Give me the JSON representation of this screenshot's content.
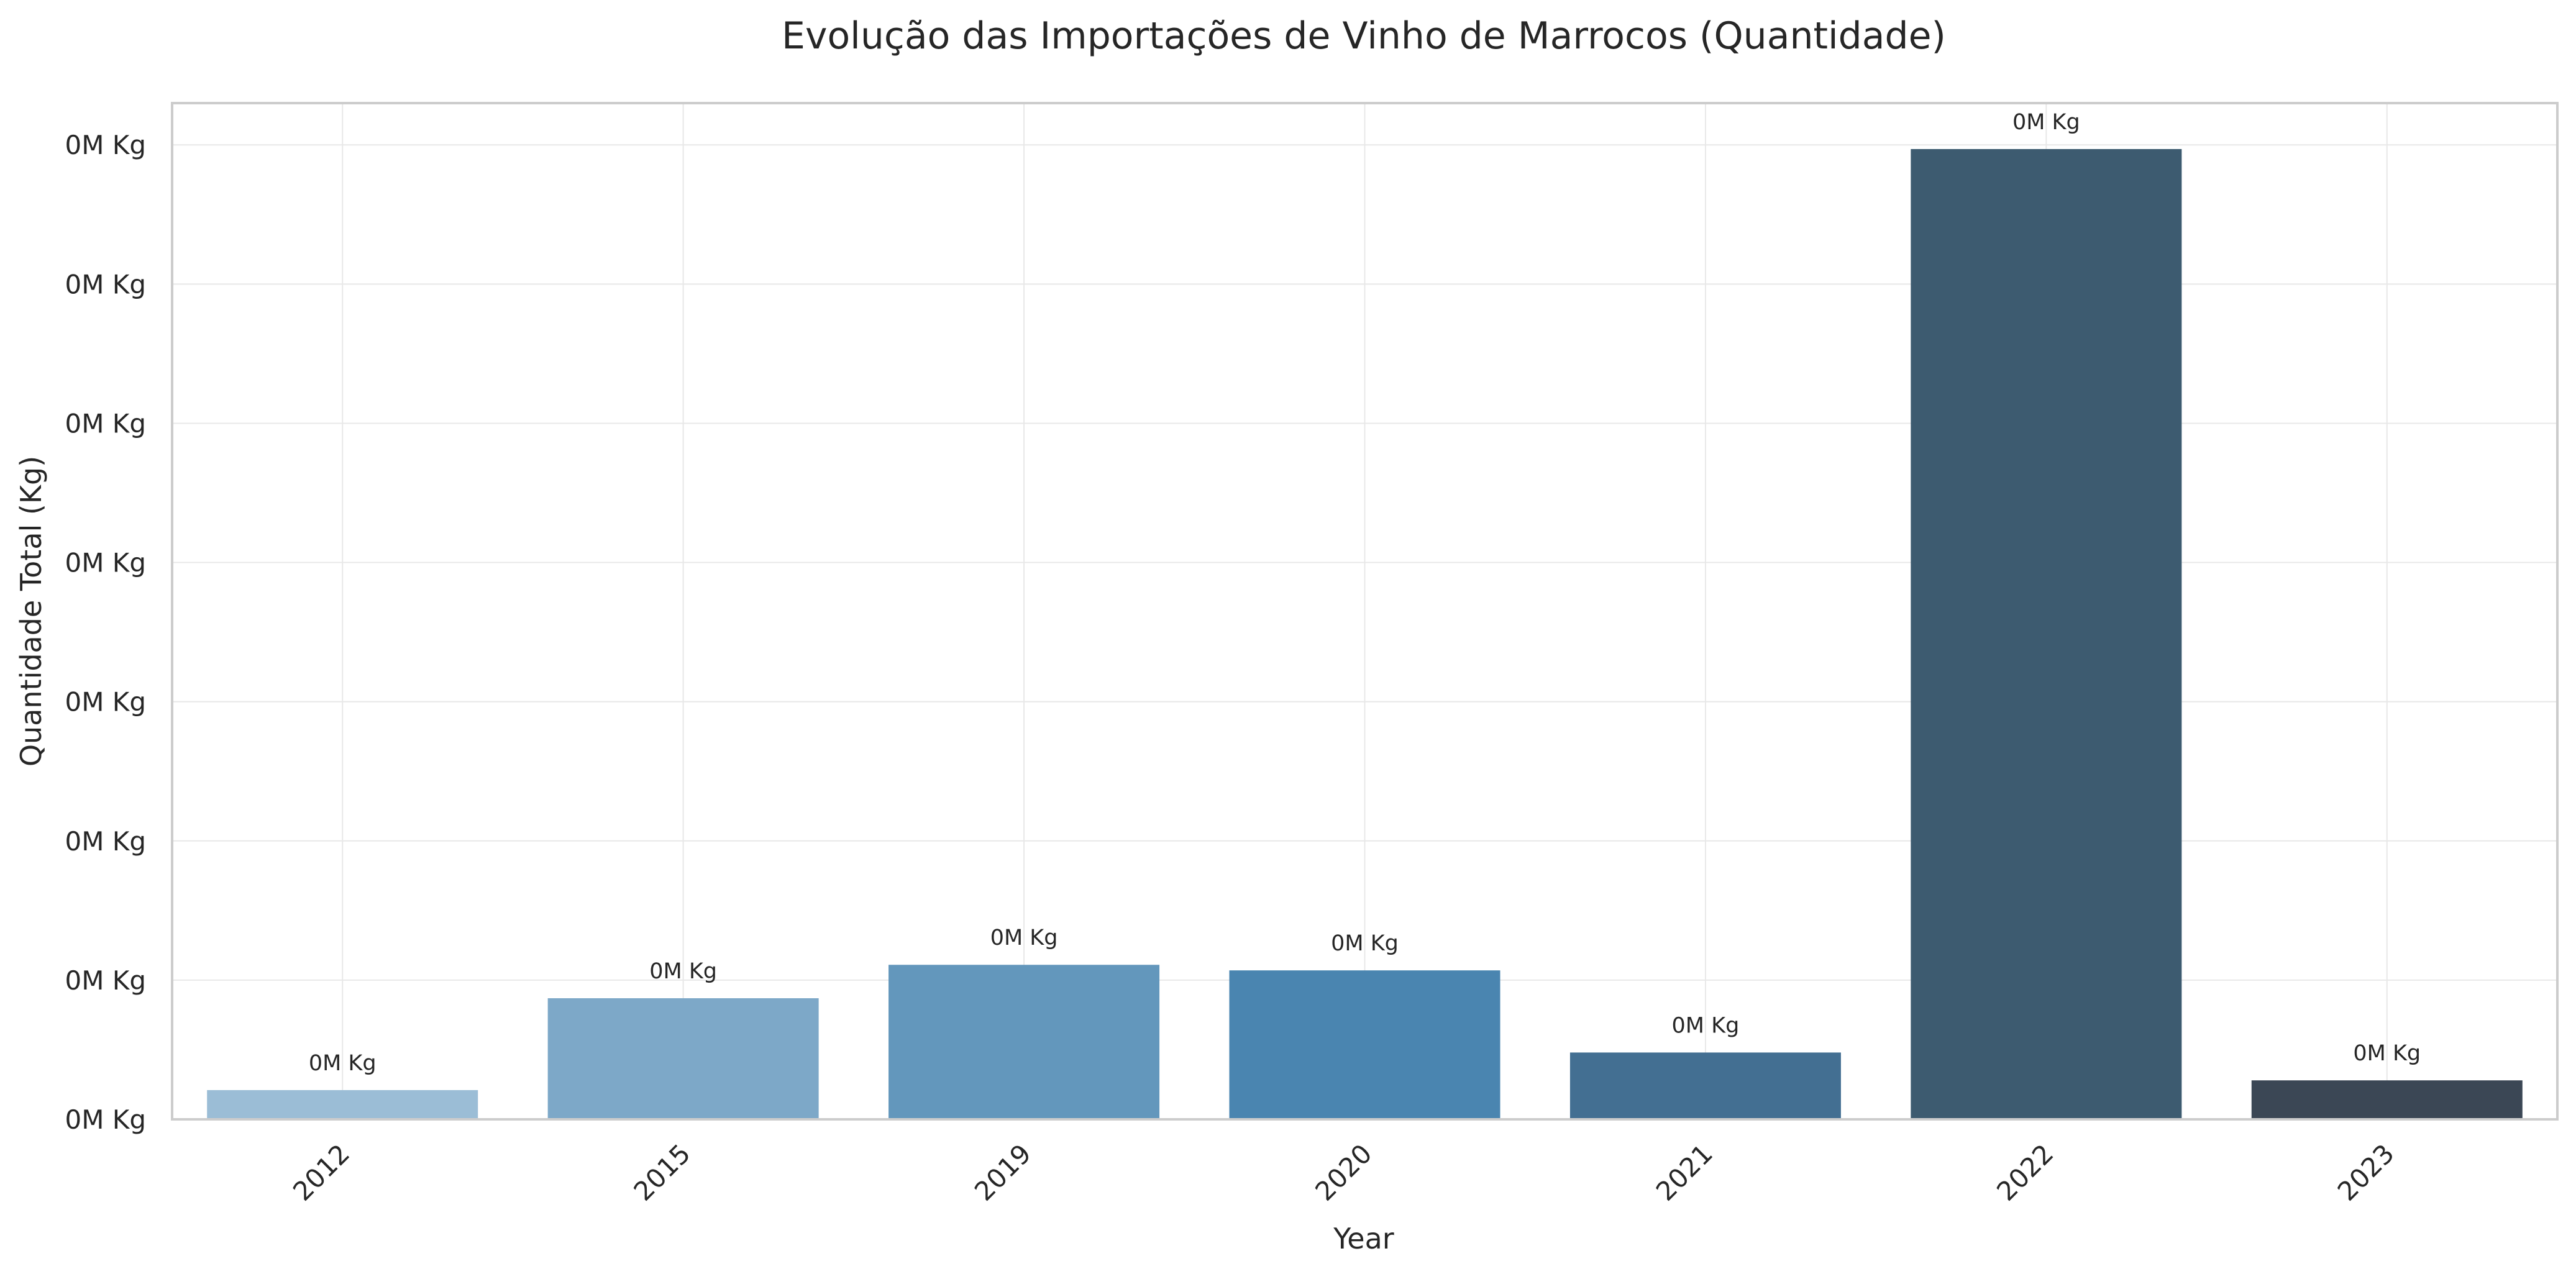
{
  "chart_data": {
    "type": "bar",
    "title": "Evolução das Importações de Vinho de Marrocos (Quantidade)",
    "xlabel": "Year",
    "ylabel": "Quantidade Total (Kg)",
    "categories": [
      "2012",
      "2015",
      "2019",
      "2020",
      "2021",
      "2022",
      "2023"
    ],
    "values": [
      2100,
      8700,
      11100,
      10700,
      4800,
      69700,
      2800
    ],
    "data_labels": [
      "0M Kg",
      "0M Kg",
      "0M Kg",
      "0M Kg",
      "0M Kg",
      "0M Kg",
      "0M Kg"
    ],
    "y_tick_values": [
      0,
      10000,
      20000,
      30000,
      40000,
      50000,
      60000,
      70000
    ],
    "y_tick_labels": [
      "0M Kg",
      "0M Kg",
      "0M Kg",
      "0M Kg",
      "0M Kg",
      "0M Kg",
      "0M Kg",
      "0M Kg"
    ],
    "ylim": [
      0,
      73000
    ],
    "grid": true,
    "colors": [
      "#9bbdd6",
      "#7da8c8",
      "#6397bc",
      "#4a85b0",
      "#436f92",
      "#3d5b70",
      "#3b4755"
    ]
  }
}
